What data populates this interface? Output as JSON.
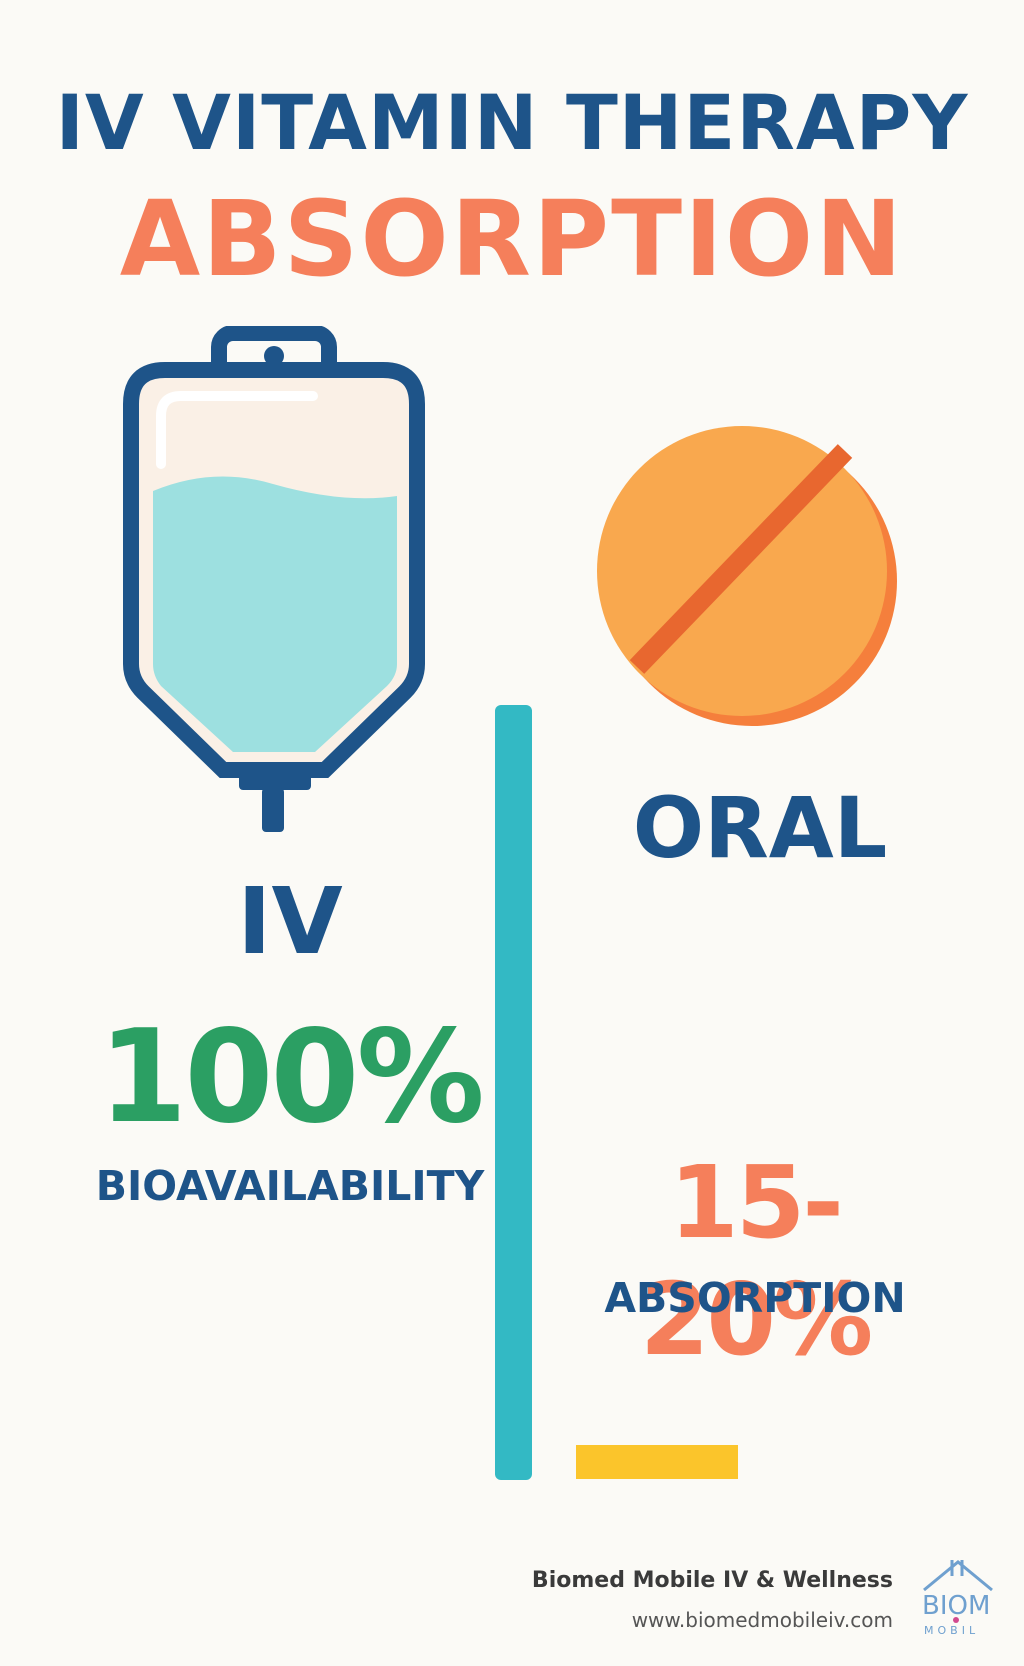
{
  "header": {
    "title_line1": "IV VITAMIN THERAPY",
    "title_line2": "ABSORPTION"
  },
  "iv": {
    "label": "IV",
    "stat": "100%",
    "caption": "BIOAVAILABILITY",
    "icon": "iv-bag-icon"
  },
  "oral": {
    "label": "ORAL",
    "stat": "15-20%",
    "caption": "ABSORPTION",
    "icon": "pill-icon"
  },
  "footer": {
    "company": "Biomed Mobile IV & Wellness",
    "website": "www.biomedmobileiv.com",
    "logo_text_top": "BIOM",
    "logo_text_bottom": "MOBIL"
  },
  "colors": {
    "navy": "#1e5489",
    "coral": "#f57f5b",
    "green": "#2b9f63",
    "teal": "#33b9c4",
    "yellow": "#fbc52b",
    "fluid": "#9de0e0",
    "pill": "#f9a84e",
    "pill_edge": "#f57f3c",
    "background": "#fbfaf6"
  }
}
